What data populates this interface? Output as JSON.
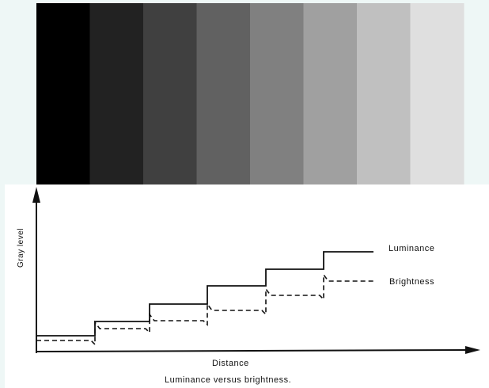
{
  "figure": {
    "y_axis_label": "Gray level",
    "x_axis_label": "Distance",
    "caption": "Luminance versus brightness."
  },
  "gray_bands": [
    "#000000",
    "#222222",
    "#404040",
    "#616161",
    "#808080",
    "#a0a0a0",
    "#c0c0c0",
    "#dfdfdf"
  ],
  "series": [
    {
      "name": "Luminance",
      "style": "solid",
      "levels": [
        1,
        2,
        3,
        4,
        5,
        6
      ]
    },
    {
      "name": "Brightness",
      "style": "dashed",
      "levels": [
        1,
        2,
        3,
        4,
        5,
        6
      ],
      "mach_bands": true
    }
  ],
  "colors": {
    "background": "#eef7f6",
    "plot_area": "#ffffff",
    "ink": "#111111"
  }
}
